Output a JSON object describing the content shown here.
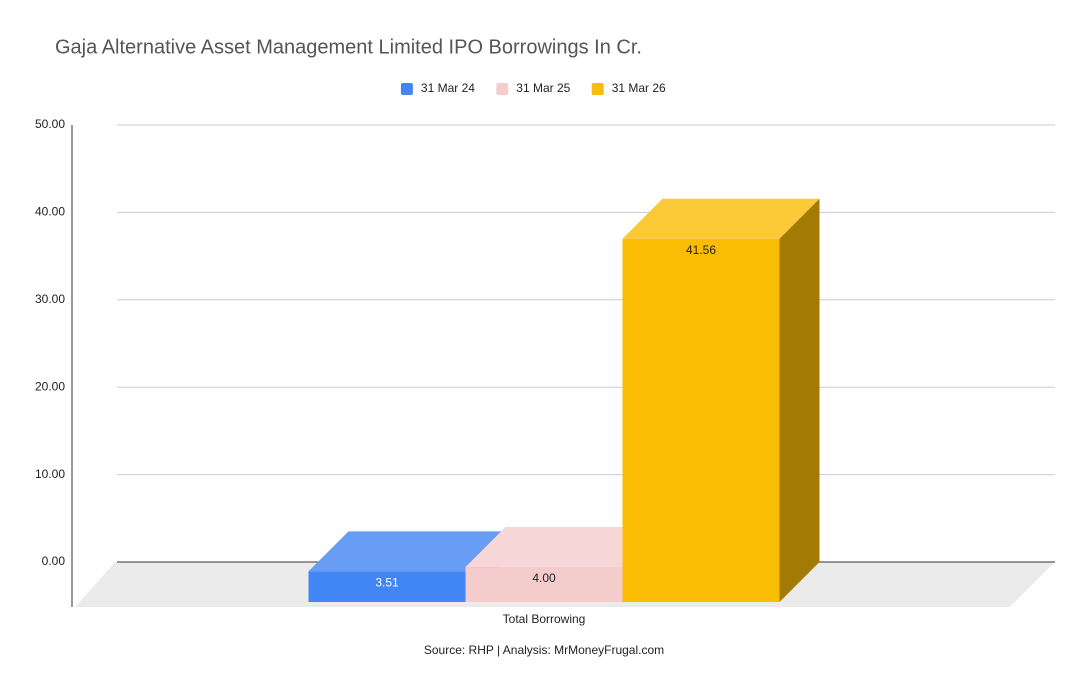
{
  "chart_data": {
    "type": "bar3d",
    "title": "Gaja Alternative Asset Management Limited IPO Borrowings In Cr.",
    "categories": [
      "Total Borrowing"
    ],
    "series": [
      {
        "name": "31 Mar 24",
        "color": "#4285f4",
        "values": [
          3.51
        ],
        "value_labels": [
          "3.51"
        ]
      },
      {
        "name": "31 Mar 25",
        "color": "#f4cccc",
        "values": [
          4
        ],
        "value_labels": [
          "4.00"
        ]
      },
      {
        "name": "31 Mar 26",
        "color": "#fbbc04",
        "values": [
          41.56
        ],
        "value_labels": [
          "41.56"
        ]
      }
    ],
    "ylim": [
      0,
      50
    ],
    "yticks": [
      {
        "value": 0,
        "label": "0.00"
      },
      {
        "value": 10,
        "label": "10.00"
      },
      {
        "value": 20,
        "label": "20.00"
      },
      {
        "value": 30,
        "label": "30.00"
      },
      {
        "value": 40,
        "label": "40.00"
      },
      {
        "value": 50,
        "label": "50.00"
      }
    ],
    "grid": true,
    "legend": "top",
    "source": "Source: RHP | Analysis: MrMoneyFrugal.com"
  }
}
